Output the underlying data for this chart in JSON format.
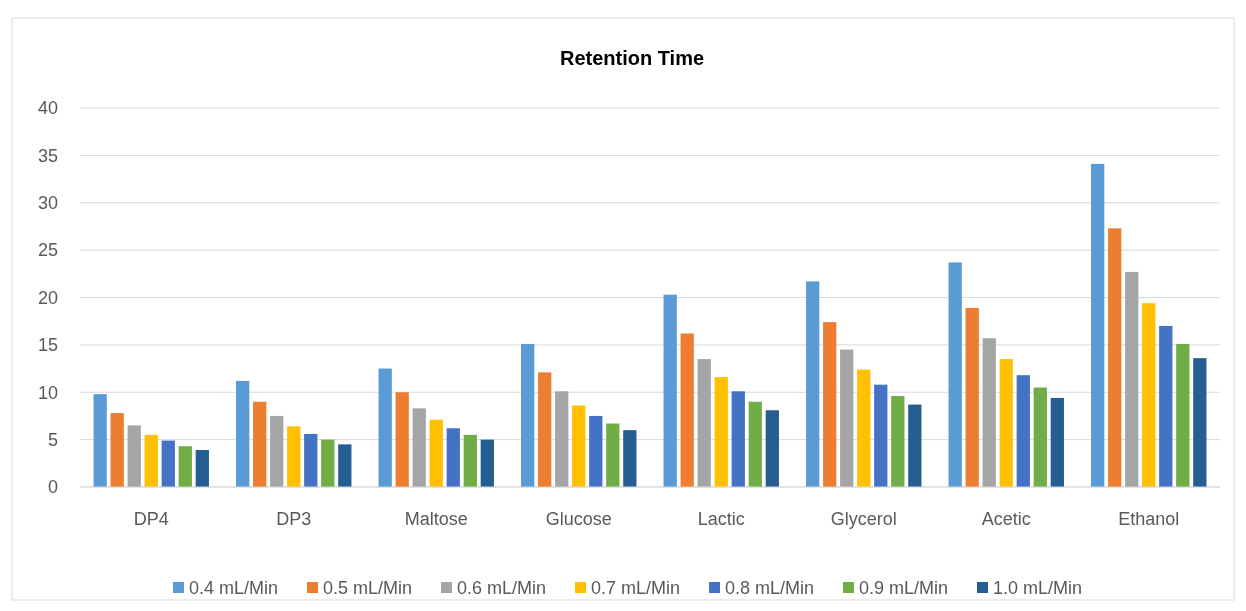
{
  "chart_data": {
    "type": "bar",
    "title": "Retention Time",
    "categories": [
      "DP4",
      "DP3",
      "Maltose",
      "Glucose",
      "Lactic",
      "Glycerol",
      "Acetic",
      "Ethanol"
    ],
    "series": [
      {
        "name": "0.4 mL/Min",
        "color": "#5b9bd5",
        "values": [
          9.8,
          11.2,
          12.5,
          15.1,
          20.3,
          21.7,
          23.7,
          34.1
        ]
      },
      {
        "name": "0.5 mL/Min",
        "color": "#ed7d31",
        "values": [
          7.8,
          9.0,
          10.0,
          12.1,
          16.2,
          17.4,
          18.9,
          27.3
        ]
      },
      {
        "name": "0.6 mL/Min",
        "color": "#a5a5a5",
        "values": [
          6.5,
          7.5,
          8.3,
          10.1,
          13.5,
          14.5,
          15.7,
          22.7
        ]
      },
      {
        "name": "0.7 mL/Min",
        "color": "#ffc000",
        "values": [
          5.5,
          6.4,
          7.1,
          8.6,
          11.6,
          12.4,
          13.5,
          19.4
        ]
      },
      {
        "name": "0.8 mL/Min",
        "color": "#4472c4",
        "values": [
          4.9,
          5.6,
          6.2,
          7.5,
          10.1,
          10.8,
          11.8,
          17.0
        ]
      },
      {
        "name": "0.9 mL/Min",
        "color": "#70ad47",
        "values": [
          4.3,
          5.0,
          5.5,
          6.7,
          9.0,
          9.6,
          10.5,
          15.1
        ]
      },
      {
        "name": "1.0 mL/Min",
        "color": "#255e91",
        "values": [
          3.9,
          4.5,
          5.0,
          6.0,
          8.1,
          8.7,
          9.4,
          13.6
        ]
      }
    ],
    "ylim": [
      0,
      40
    ],
    "yticks": [
      0,
      5,
      10,
      15,
      20,
      25,
      30,
      35,
      40
    ],
    "grid": "y",
    "legend": "bottom"
  }
}
